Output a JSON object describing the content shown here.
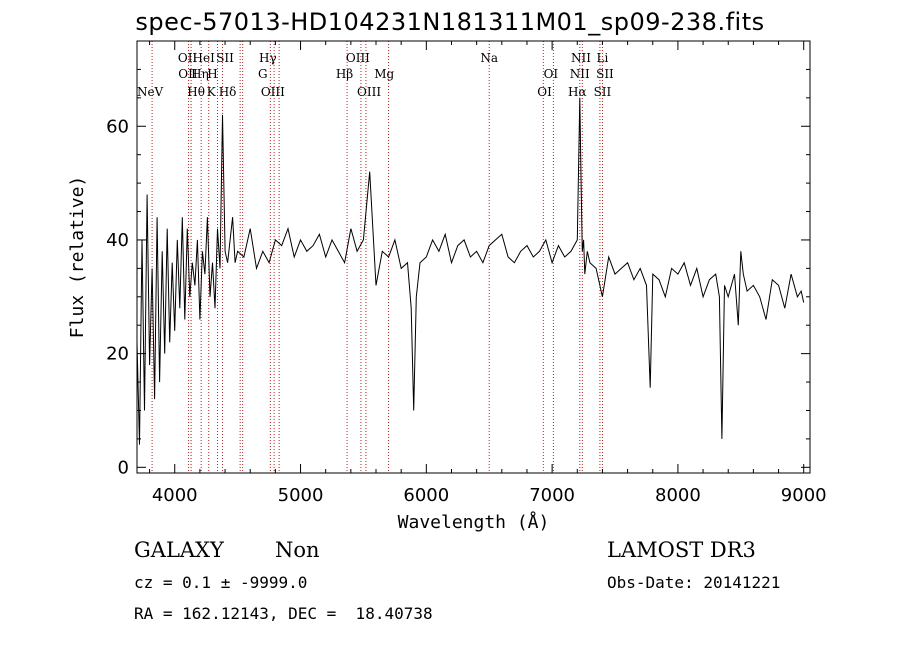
{
  "title": "spec-57013-HD104231N181311M01_sp09-238.fits",
  "footer": {
    "class_label": "GALAXY",
    "subclass_label": "Non",
    "cz_line": "cz = 0.1 ± -9999.0",
    "radec_line": "RA = 162.12143, DEC =  18.40738",
    "survey": "LAMOST DR3",
    "obs_date": "Obs-Date: 20141221"
  },
  "chart_data": {
    "type": "line",
    "xlabel": "Wavelength (Å)",
    "ylabel": "Flux (relative)",
    "xlim": [
      3700,
      9050
    ],
    "ylim": [
      -1,
      75
    ],
    "xticks": [
      4000,
      5000,
      6000,
      7000,
      8000,
      9000
    ],
    "yticks": [
      0,
      20,
      40,
      60
    ],
    "series": [
      {
        "name": "flux",
        "color": "#000000",
        "x": [
          3700,
          3720,
          3740,
          3760,
          3780,
          3800,
          3820,
          3840,
          3860,
          3880,
          3900,
          3920,
          3940,
          3960,
          3980,
          4000,
          4020,
          4040,
          4060,
          4080,
          4100,
          4120,
          4140,
          4160,
          4180,
          4200,
          4220,
          4240,
          4260,
          4280,
          4300,
          4320,
          4340,
          4360,
          4380,
          4400,
          4420,
          4440,
          4460,
          4480,
          4500,
          4550,
          4600,
          4650,
          4700,
          4750,
          4800,
          4850,
          4900,
          4950,
          5000,
          5050,
          5100,
          5150,
          5200,
          5250,
          5300,
          5350,
          5400,
          5450,
          5500,
          5550,
          5600,
          5650,
          5700,
          5750,
          5800,
          5850,
          5880,
          5900,
          5920,
          5950,
          6000,
          6050,
          6100,
          6150,
          6200,
          6250,
          6300,
          6350,
          6400,
          6450,
          6500,
          6550,
          6600,
          6650,
          6700,
          6750,
          6800,
          6850,
          6900,
          6950,
          7000,
          7050,
          7100,
          7150,
          7200,
          7220,
          7230,
          7240,
          7250,
          7260,
          7280,
          7300,
          7350,
          7400,
          7450,
          7500,
          7550,
          7600,
          7650,
          7700,
          7750,
          7780,
          7800,
          7850,
          7900,
          7950,
          8000,
          8050,
          8100,
          8150,
          8200,
          8250,
          8300,
          8330,
          8350,
          8370,
          8400,
          8450,
          8480,
          8500,
          8520,
          8550,
          8600,
          8650,
          8700,
          8750,
          8800,
          8850,
          8900,
          8950,
          8980,
          9000
        ],
        "y": [
          22,
          4,
          40,
          10,
          48,
          18,
          35,
          12,
          44,
          15,
          38,
          20,
          42,
          22,
          36,
          24,
          40,
          28,
          44,
          26,
          42,
          30,
          36,
          32,
          40,
          26,
          38,
          34,
          44,
          30,
          36,
          28,
          42,
          35,
          62,
          38,
          36,
          40,
          44,
          36,
          38,
          37,
          42,
          35,
          38,
          36,
          40,
          39,
          42,
          37,
          40,
          38,
          39,
          41,
          37,
          40,
          38,
          36,
          42,
          38,
          40,
          52,
          32,
          38,
          37,
          40,
          35,
          36,
          28,
          10,
          30,
          36,
          37,
          40,
          38,
          41,
          36,
          39,
          40,
          37,
          38,
          36,
          39,
          40,
          41,
          37,
          36,
          38,
          39,
          37,
          38,
          40,
          36,
          39,
          37,
          38,
          40,
          65,
          50,
          38,
          40,
          34,
          38,
          36,
          35,
          30,
          37,
          34,
          35,
          36,
          33,
          35,
          32,
          14,
          34,
          33,
          30,
          35,
          34,
          36,
          32,
          35,
          30,
          33,
          34,
          30,
          5,
          32,
          30,
          34,
          25,
          38,
          34,
          31,
          32,
          30,
          26,
          33,
          32,
          28,
          34,
          30,
          31,
          29
        ]
      }
    ],
    "line_labels": [
      {
        "label": "NeV",
        "x": 3804,
        "row": 3
      },
      {
        "label": "OII",
        "x": 4102,
        "row": 1
      },
      {
        "label": "OII",
        "x": 4105,
        "row": 2
      },
      {
        "label": "Hθ",
        "x": 4170,
        "row": 3
      },
      {
        "label": "HeI",
        "x": 4230,
        "row": 1
      },
      {
        "label": "Hη",
        "x": 4200,
        "row": 2
      },
      {
        "label": "H",
        "x": 4300,
        "row": 2
      },
      {
        "label": "K",
        "x": 4290,
        "row": 3
      },
      {
        "label": "SII",
        "x": 4400,
        "row": 1
      },
      {
        "label": "Hδ",
        "x": 4420,
        "row": 3
      },
      {
        "label": "Hγ",
        "x": 4740,
        "row": 1
      },
      {
        "label": "G",
        "x": 4700,
        "row": 2
      },
      {
        "label": "OIII",
        "x": 4780,
        "row": 3
      },
      {
        "label": "OIII",
        "x": 5456,
        "row": 1
      },
      {
        "label": "Hβ",
        "x": 5350,
        "row": 2
      },
      {
        "label": "OIII",
        "x": 5545,
        "row": 3
      },
      {
        "label": "Mg",
        "x": 5665,
        "row": 2
      },
      {
        "label": "Na",
        "x": 6500,
        "row": 1
      },
      {
        "label": "OI",
        "x": 6990,
        "row": 2
      },
      {
        "label": "OI",
        "x": 6940,
        "row": 3
      },
      {
        "label": "NII",
        "x": 7230,
        "row": 1
      },
      {
        "label": "NII",
        "x": 7220,
        "row": 2
      },
      {
        "label": "Hα",
        "x": 7200,
        "row": 3
      },
      {
        "label": "Li",
        "x": 7400,
        "row": 1
      },
      {
        "label": "SII",
        "x": 7420,
        "row": 2
      },
      {
        "label": "SII",
        "x": 7400,
        "row": 3
      }
    ],
    "line_positions": [
      3820,
      4110,
      4130,
      4210,
      4270,
      4340,
      4380,
      4520,
      4540,
      4760,
      4790,
      4830,
      5370,
      5480,
      5520,
      5700,
      6500,
      6930,
      7010,
      7220,
      7240,
      7380,
      7400
    ]
  }
}
